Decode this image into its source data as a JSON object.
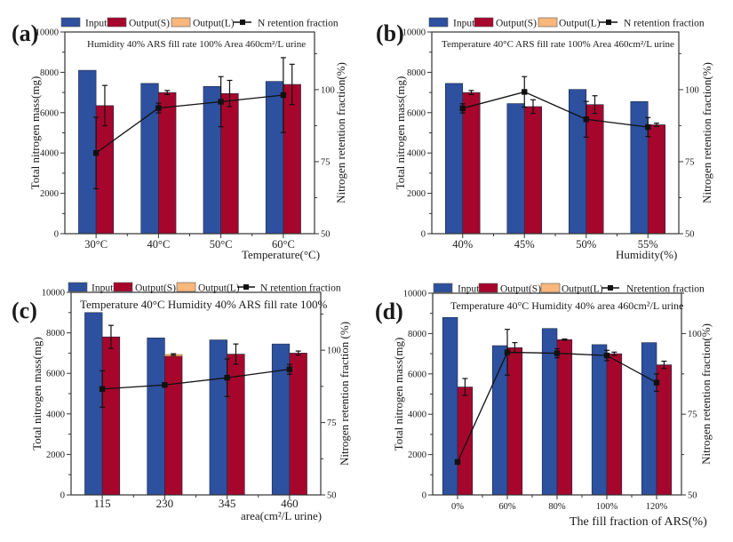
{
  "colors": {
    "input": "#2D509F",
    "output_s": "#A6062C",
    "output_l": "#F9B77C",
    "retention": "#111111"
  },
  "chart_data": [
    {
      "type": "bar",
      "panel_label": "(a)",
      "annotation": "Humidity 40%  ARS fill  rate 100% Area 460cm²/L urine",
      "categories": [
        "30°C",
        "40°C",
        "50°C",
        "60°C"
      ],
      "xlabel": "Temperature(°C)",
      "ylabel": "Total nitrogen mass(mg)",
      "y2label": "Nitrogen retention fraction(%)",
      "ylim": [
        0,
        10000
      ],
      "y2lim": [
        50,
        120
      ],
      "yticks": [
        0,
        2000,
        4000,
        6000,
        8000,
        10000
      ],
      "y2ticks": [
        50,
        75,
        100
      ],
      "legend": [
        "Input",
        "Output(S)",
        "Output(L)",
        "N retention fraction"
      ],
      "legend_position": "top",
      "grid": false,
      "series": [
        {
          "name": "Input",
          "axis": "left",
          "values": [
            8100,
            7450,
            7300,
            7550
          ]
        },
        {
          "name": "Output(S)",
          "axis": "left",
          "values": [
            6350,
            7000,
            6950,
            7400
          ],
          "errors": [
            1000,
            100,
            650,
            1000
          ]
        },
        {
          "name": "Output(L)",
          "axis": "left",
          "stacked_on": "Output(S)",
          "values": [
            0,
            0,
            0,
            0
          ]
        },
        {
          "name": "N retention fraction",
          "axis": "right",
          "values": [
            78.0,
            93.6,
            95.8,
            98.1
          ],
          "errors": [
            12.4,
            1.7,
            8.7,
            13.0
          ]
        }
      ]
    },
    {
      "type": "bar",
      "panel_label": "(b)",
      "annotation": "Temperature 40°C   ARS fill  rate 100%  Area 460cm²/L urine",
      "categories": [
        "40%",
        "45%",
        "50%",
        "55%"
      ],
      "xlabel": "Humidity(%)",
      "ylabel": "Total nitrogen mass(mg)",
      "y2label": "Nitrogen retention fraction(%)",
      "ylim": [
        0,
        10000
      ],
      "y2lim": [
        50,
        120
      ],
      "yticks": [
        0,
        2000,
        4000,
        6000,
        8000,
        10000
      ],
      "y2ticks": [
        50,
        75,
        100
      ],
      "legend": [
        "Input",
        "Output(S)",
        "Output(L)",
        "N retention fraction"
      ],
      "legend_position": "top",
      "grid": false,
      "series": [
        {
          "name": "Input",
          "axis": "left",
          "values": [
            7450,
            6450,
            7150,
            6550
          ]
        },
        {
          "name": "Output(S)",
          "axis": "left",
          "values": [
            7000,
            6300,
            6400,
            5400
          ],
          "errors": [
            100,
            340,
            440,
            80
          ]
        },
        {
          "name": "Output(L)",
          "axis": "left",
          "stacked_on": "Output(S)",
          "values": [
            0,
            0,
            0,
            0
          ]
        },
        {
          "name": "N retention fraction",
          "axis": "right",
          "values": [
            93.5,
            99.2,
            89.7,
            87.0
          ],
          "errors": [
            1.6,
            5.3,
            6.2,
            3.3
          ]
        }
      ]
    },
    {
      "type": "bar",
      "panel_label": "(c)",
      "annotation": "Temperature 40°C   Humidity  40%   ARS fill  rate 100%",
      "categories": [
        "115",
        "230",
        "345",
        "460"
      ],
      "xlabel": "area(cm²/L urine)",
      "ylabel": "Total nitrogen mass(mg)",
      "y2label": "Nitrogen retention  fraction (%)",
      "ylim": [
        0,
        10000
      ],
      "y2lim": [
        50,
        120
      ],
      "yticks": [
        0,
        2000,
        4000,
        6000,
        8000,
        10000
      ],
      "y2ticks": [
        50,
        75,
        100
      ],
      "legend": [
        "Input",
        "Output(S)",
        "Output(L)",
        "N retention fraction"
      ],
      "legend_position": "top",
      "grid": false,
      "series": [
        {
          "name": "Input",
          "axis": "left",
          "values": [
            9000,
            7750,
            7650,
            7450
          ]
        },
        {
          "name": "Output(S)",
          "axis": "left",
          "values": [
            7800,
            6850,
            6950,
            7000
          ],
          "errors": [
            570,
            40,
            500,
            100
          ]
        },
        {
          "name": "Output(L)",
          "axis": "left",
          "stacked_on": "Output(S)",
          "values": [
            0,
            80,
            0,
            0
          ]
        },
        {
          "name": "N retention fraction",
          "axis": "right",
          "values": [
            86.6,
            88.0,
            90.5,
            93.4
          ],
          "errors": [
            6.3,
            0,
            6.5,
            1.7
          ]
        }
      ]
    },
    {
      "type": "bar",
      "panel_label": "(d)",
      "annotation": "Temperature 40°C   Humidity 40%  area 460cm²/L urine",
      "categories": [
        "0%",
        "60%",
        "80%",
        "100%",
        "120%"
      ],
      "xlabel": "The fill fraction of ARS(%)",
      "ylabel": "Total nitrogen mass(mg)",
      "y2label": "Nitrogen retention fraction(%)",
      "ylim": [
        0,
        10000
      ],
      "y2lim": [
        50,
        112.5
      ],
      "yticks": [
        0,
        2000,
        4000,
        6000,
        8000,
        10000
      ],
      "y2ticks": [
        50,
        75,
        100
      ],
      "legend": [
        "Input",
        "Output(S)",
        "Output(L)",
        "Nretention fraction"
      ],
      "legend_position": "top",
      "grid": false,
      "series": [
        {
          "name": "Input",
          "axis": "left",
          "values": [
            8800,
            7400,
            8250,
            7450,
            7550
          ]
        },
        {
          "name": "Output(S)",
          "axis": "left",
          "values": [
            5350,
            7300,
            7700,
            7000,
            6450
          ],
          "errors": [
            420,
            250,
            30,
            80,
            180
          ]
        },
        {
          "name": "Output(L)",
          "axis": "left",
          "stacked_on": "Output(S)",
          "values": [
            0,
            0,
            0,
            0,
            0
          ]
        },
        {
          "name": "N retention fraction",
          "axis": "right",
          "values": [
            60.2,
            94.2,
            93.9,
            93.2,
            84.8
          ],
          "errors": [
            0,
            7.1,
            1.4,
            1.6,
            2.7
          ]
        }
      ]
    }
  ]
}
